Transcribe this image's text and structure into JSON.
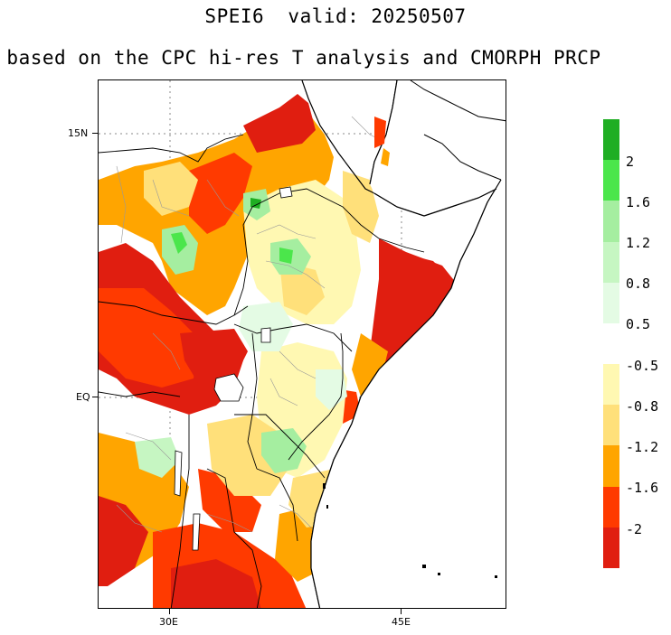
{
  "title": {
    "line1": "SPEI6  valid: 20250507",
    "line2": "based on the CPC hi-res T analysis and CMORPH PRCP"
  },
  "axes": {
    "lat_labels": [
      "15N",
      "EQ"
    ],
    "lon_labels": [
      "30E",
      "45E"
    ]
  },
  "colorbar": {
    "wet": {
      "colors": [
        "#1fae23",
        "#4be64b",
        "#a5eea0",
        "#c6f6c2",
        "#e4fbe4"
      ],
      "labels": [
        "2",
        "1.6",
        "1.2",
        "0.8",
        "0.5"
      ]
    },
    "dry": {
      "colors": [
        "#fff8b2",
        "#ffe07a",
        "#ffa500",
        "#ff3a00",
        "#e01e10"
      ],
      "labels": [
        "-0.5",
        "-0.8",
        "-1.2",
        "-1.6",
        "-2"
      ]
    }
  }
}
